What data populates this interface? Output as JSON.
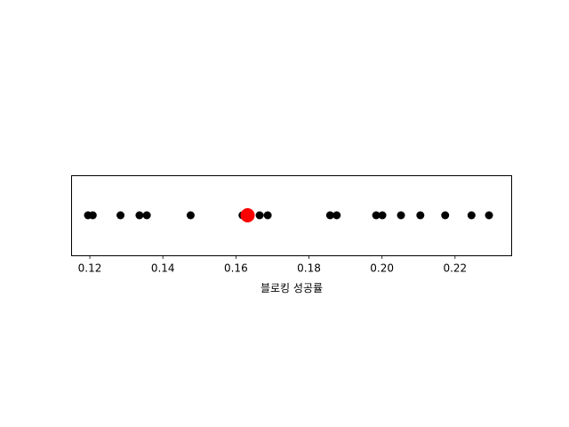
{
  "chart_data": {
    "type": "scatter",
    "title": "",
    "xlabel": "블로킹 성공률",
    "ylabel": "",
    "xlim": [
      0.115,
      0.2355
    ],
    "x_ticks": [
      "0.12",
      "0.14",
      "0.16",
      "0.18",
      "0.20",
      "0.22"
    ],
    "x_tick_values": [
      0.12,
      0.14,
      0.16,
      0.18,
      0.2,
      0.22
    ],
    "grid": false,
    "series": [
      {
        "color": "#000000",
        "values": [
          0.1195,
          0.1208,
          0.1284,
          0.1336,
          0.1356,
          0.1476,
          0.1618,
          0.1636,
          0.1665,
          0.1687,
          0.1858,
          0.1876,
          0.1984,
          0.2001,
          0.2052,
          0.2105,
          0.2173,
          0.2245,
          0.2293
        ]
      },
      {
        "color": "#ff0000",
        "values": [
          0.1632
        ]
      }
    ]
  }
}
